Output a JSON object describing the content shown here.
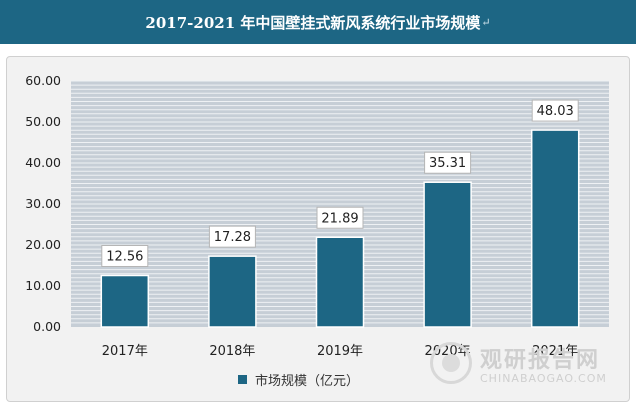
{
  "header": {
    "title": "2017-2021 年中国壁挂式新风系统行业市场规模",
    "mark": "↵"
  },
  "chart_data": {
    "type": "bar",
    "categories": [
      "2017年",
      "2018年",
      "2019年",
      "2020年",
      "2021年"
    ],
    "series": [
      {
        "name": "市场规模（亿元）",
        "values": [
          12.56,
          17.28,
          21.89,
          35.31,
          48.03
        ]
      }
    ],
    "data_labels": [
      "12.56",
      "17.28",
      "21.89",
      "35.31",
      "48.03"
    ],
    "yticks": [
      "0.00",
      "10.00",
      "20.00",
      "30.00",
      "40.00",
      "50.00",
      "60.00"
    ],
    "ylim": [
      0,
      60
    ],
    "grid": true,
    "legend_position": "bottom",
    "bar_color": "#1d6684",
    "title": "",
    "xlabel": "",
    "ylabel": ""
  },
  "watermark": {
    "name_cn": "观研报告网",
    "url": "CHINABAOGAO.COM"
  }
}
